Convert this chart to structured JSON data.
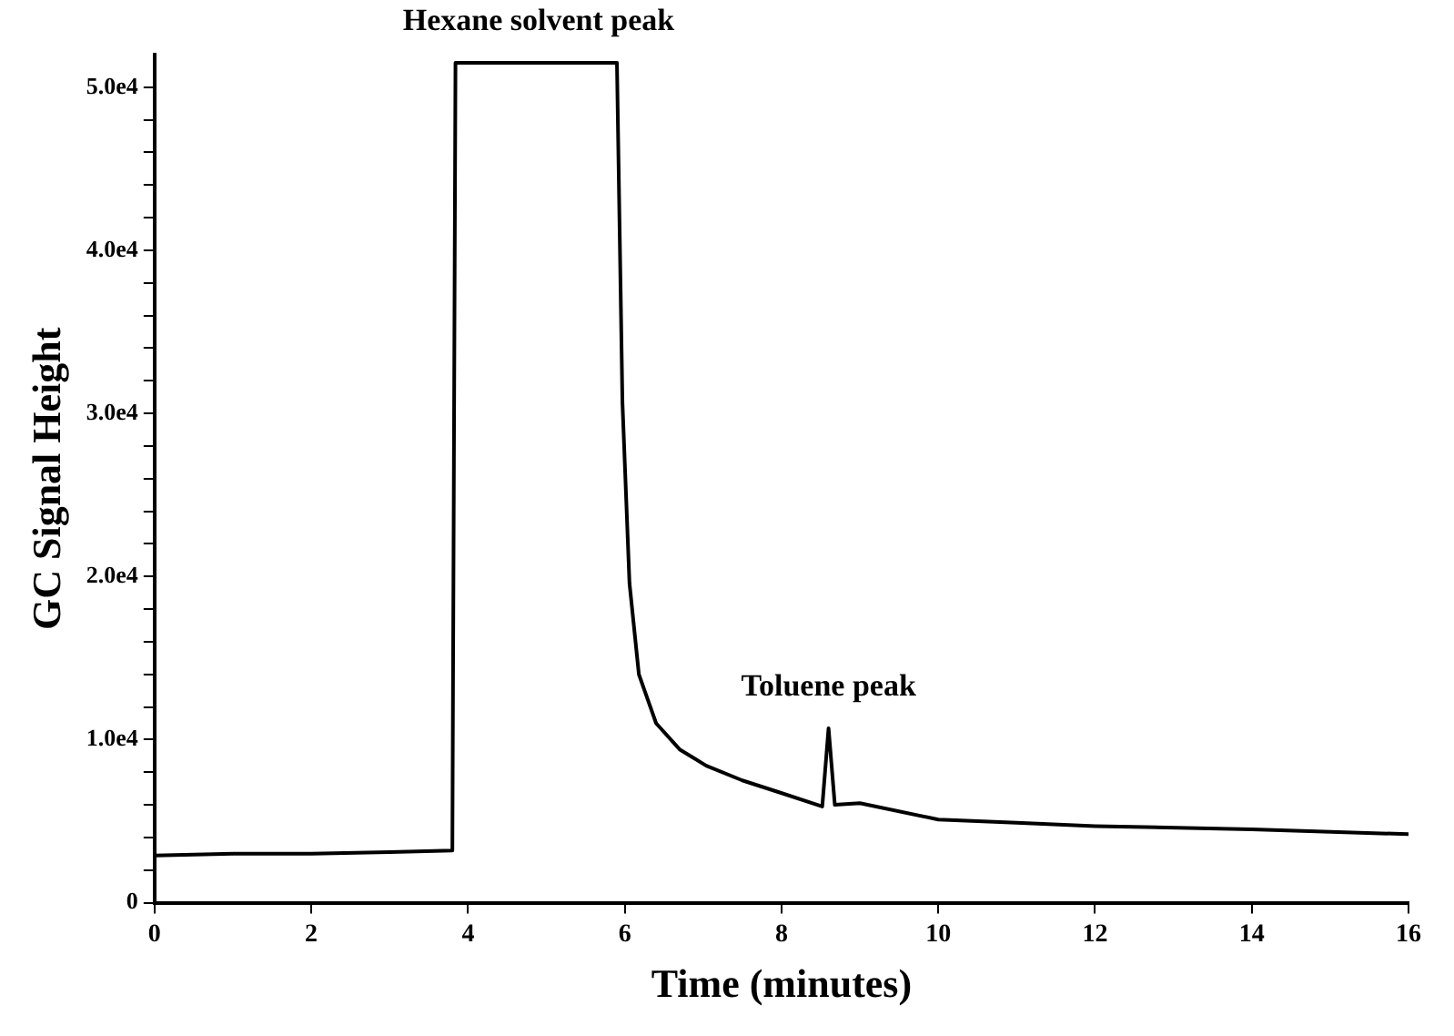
{
  "chart_data": {
    "type": "line",
    "xlabel": "Time (minutes)",
    "ylabel": "GC Signal Height",
    "series": [
      {
        "color": "#000000",
        "x": [
          0,
          1,
          2,
          3,
          3.8,
          3.84,
          5.9,
          5.97,
          6.06,
          6.18,
          6.4,
          6.7,
          7.04,
          7.5,
          7.95,
          8.52,
          8.6,
          8.68,
          9,
          10,
          11,
          12,
          14,
          16
        ],
        "values": [
          2900,
          3000,
          3000,
          3100,
          3200,
          51500,
          51500,
          30700,
          19600,
          14000,
          11000,
          9400,
          8400,
          7500,
          6800,
          5900,
          10700,
          6000,
          6100,
          5100,
          4900,
          4700,
          4500,
          4200
        ]
      }
    ],
    "xlim": [
      0,
      16
    ],
    "xticks": [
      0,
      2,
      4,
      6,
      8,
      10,
      12,
      14,
      16
    ],
    "ylim": [
      0,
      52000
    ],
    "yticks": [
      0,
      {
        "value": 2000,
        "label": null
      },
      {
        "value": 4000,
        "label": null
      },
      {
        "value": 6000,
        "label": null
      },
      {
        "value": 8000,
        "label": null
      },
      {
        "value": 10000,
        "label": "1.0e4"
      },
      {
        "value": 12000,
        "label": null
      },
      {
        "value": 14000,
        "label": null
      },
      {
        "value": 16000,
        "label": null
      },
      {
        "value": 18000,
        "label": null
      },
      {
        "value": 20000,
        "label": "2.0e4"
      },
      {
        "value": 22000,
        "label": null
      },
      {
        "value": 24000,
        "label": null
      },
      {
        "value": 26000,
        "label": null
      },
      {
        "value": 28000,
        "label": null
      },
      {
        "value": 30000,
        "label": "3.0e4"
      },
      {
        "value": 32000,
        "label": null
      },
      {
        "value": 34000,
        "label": null
      },
      {
        "value": 36000,
        "label": null
      },
      {
        "value": 38000,
        "label": null
      },
      {
        "value": 40000,
        "label": "4.0e4"
      },
      {
        "value": 42000,
        "label": null
      },
      {
        "value": 44000,
        "label": null
      },
      {
        "value": 46000,
        "label": null
      },
      {
        "value": 48000,
        "label": null
      },
      {
        "value": 50000,
        "label": "5.0e4"
      }
    ],
    "annotations": [
      {
        "text": "Hexane solvent peak",
        "x": 4.9,
        "y": 51500
      },
      {
        "text": "Toluene peak",
        "x": 8.6,
        "y": 10700
      }
    ],
    "grid": false,
    "legend": false,
    "marker": "none",
    "line_style": "solid"
  }
}
